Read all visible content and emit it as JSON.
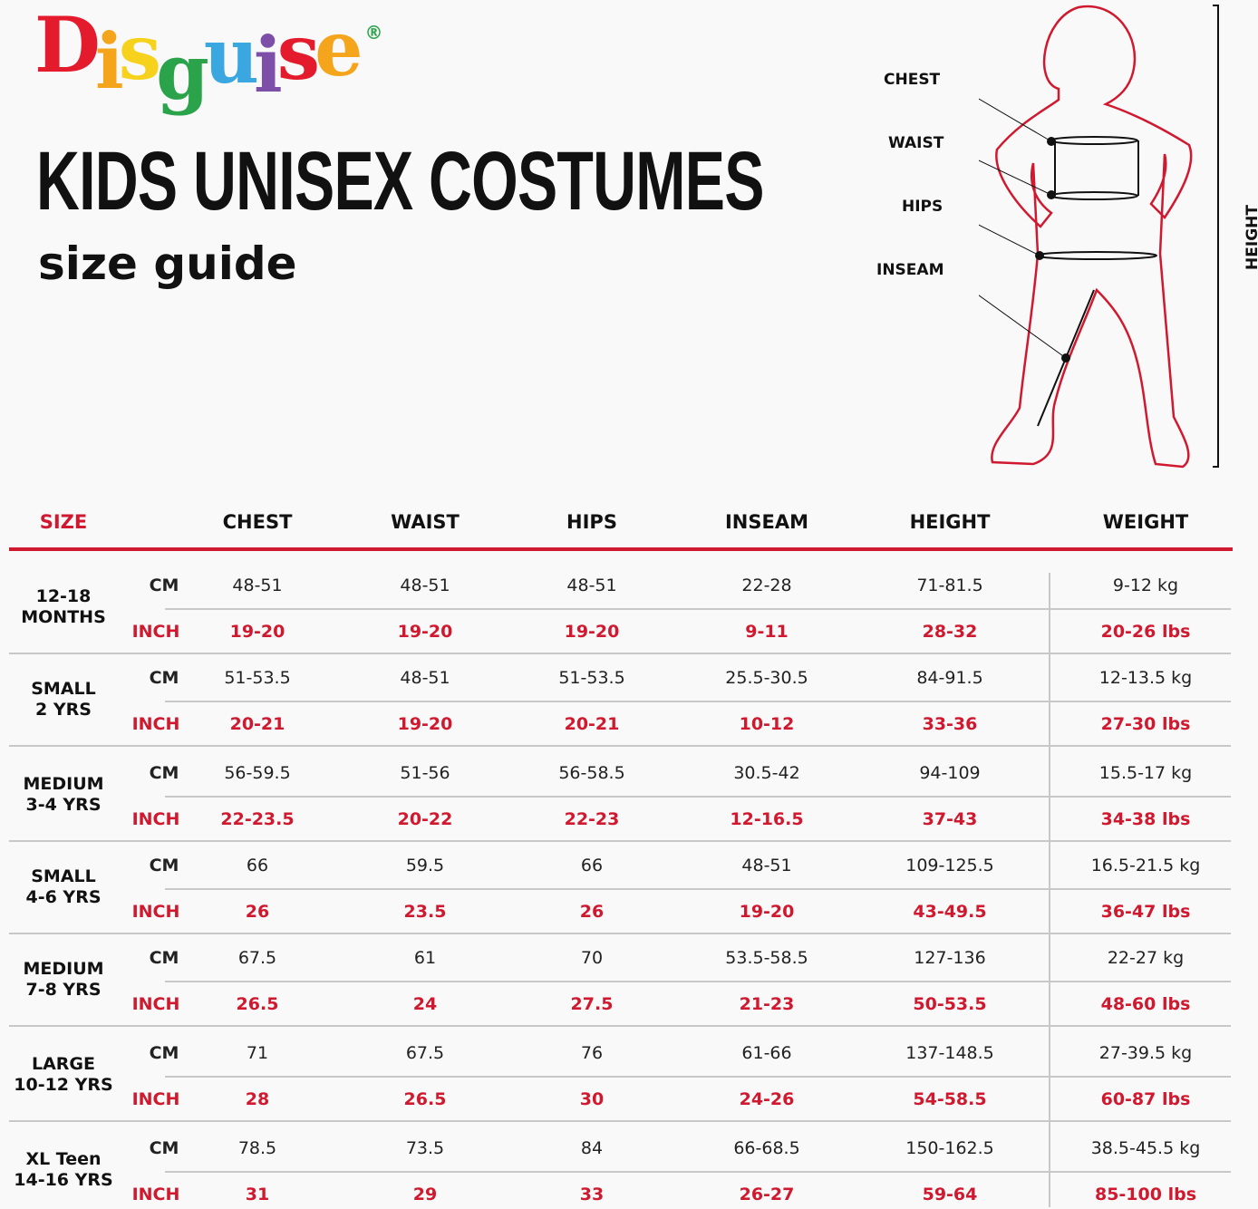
{
  "brand": {
    "logo_text": "Disguise",
    "registered": "®",
    "letter_colors": [
      "#e31b2c",
      "#f4a51c",
      "#f6d21c",
      "#2aa34a",
      "#3ba7e0",
      "#7d4fa8",
      "#e31b2c",
      "#f4a51c"
    ]
  },
  "title": "KIDS UNISEX COSTUMES",
  "subtitle": "size guide",
  "diagram": {
    "labels": {
      "chest": "CHEST",
      "waist": "WAIST",
      "hips": "HIPS",
      "inseam": "INSEAM",
      "height": "HEIGHT"
    }
  },
  "table": {
    "headers": [
      "SIZE",
      "CHEST",
      "WAIST",
      "HIPS",
      "INSEAM",
      "HEIGHT",
      "WEIGHT"
    ],
    "units": {
      "cm": "CM",
      "inch": "INCH"
    },
    "rows": [
      {
        "size": [
          "12-18",
          "MONTHS"
        ],
        "cm": [
          "48-51",
          "48-51",
          "48-51",
          "22-28",
          "71-81.5",
          "9-12 kg"
        ],
        "inch": [
          "19-20",
          "19-20",
          "19-20",
          "9-11",
          "28-32",
          "20-26 lbs"
        ]
      },
      {
        "size": [
          "SMALL",
          "2 YRS"
        ],
        "cm": [
          "51-53.5",
          "48-51",
          "51-53.5",
          "25.5-30.5",
          "84-91.5",
          "12-13.5 kg"
        ],
        "inch": [
          "20-21",
          "19-20",
          "20-21",
          "10-12",
          "33-36",
          "27-30 lbs"
        ]
      },
      {
        "size": [
          "MEDIUM",
          "3-4 YRS"
        ],
        "cm": [
          "56-59.5",
          "51-56",
          "56-58.5",
          "30.5-42",
          "94-109",
          "15.5-17 kg"
        ],
        "inch": [
          "22-23.5",
          "20-22",
          "22-23",
          "12-16.5",
          "37-43",
          "34-38 lbs"
        ]
      },
      {
        "size": [
          "SMALL",
          "4-6 YRS"
        ],
        "cm": [
          "66",
          "59.5",
          "66",
          "48-51",
          "109-125.5",
          "16.5-21.5 kg"
        ],
        "inch": [
          "26",
          "23.5",
          "26",
          "19-20",
          "43-49.5",
          "36-47 lbs"
        ]
      },
      {
        "size": [
          "MEDIUM",
          "7-8 YRS"
        ],
        "cm": [
          "67.5",
          "61",
          "70",
          "53.5-58.5",
          "127-136",
          "22-27 kg"
        ],
        "inch": [
          "26.5",
          "24",
          "27.5",
          "21-23",
          "50-53.5",
          "48-60 lbs"
        ]
      },
      {
        "size": [
          "LARGE",
          "10-12 YRS"
        ],
        "cm": [
          "71",
          "67.5",
          "76",
          "61-66",
          "137-148.5",
          "27-39.5 kg"
        ],
        "inch": [
          "28",
          "26.5",
          "30",
          "24-26",
          "54-58.5",
          "60-87 lbs"
        ]
      },
      {
        "size": [
          "XL Teen",
          "14-16 YRS"
        ],
        "cm": [
          "78.5",
          "73.5",
          "84",
          "66-68.5",
          "150-162.5",
          "38.5-45.5 kg"
        ],
        "inch": [
          "31",
          "29",
          "33",
          "26-27",
          "59-64",
          "85-100 lbs"
        ]
      }
    ]
  },
  "colors": {
    "accent": "#d0192f",
    "text": "#111111",
    "divider": "#c8c8c8"
  }
}
